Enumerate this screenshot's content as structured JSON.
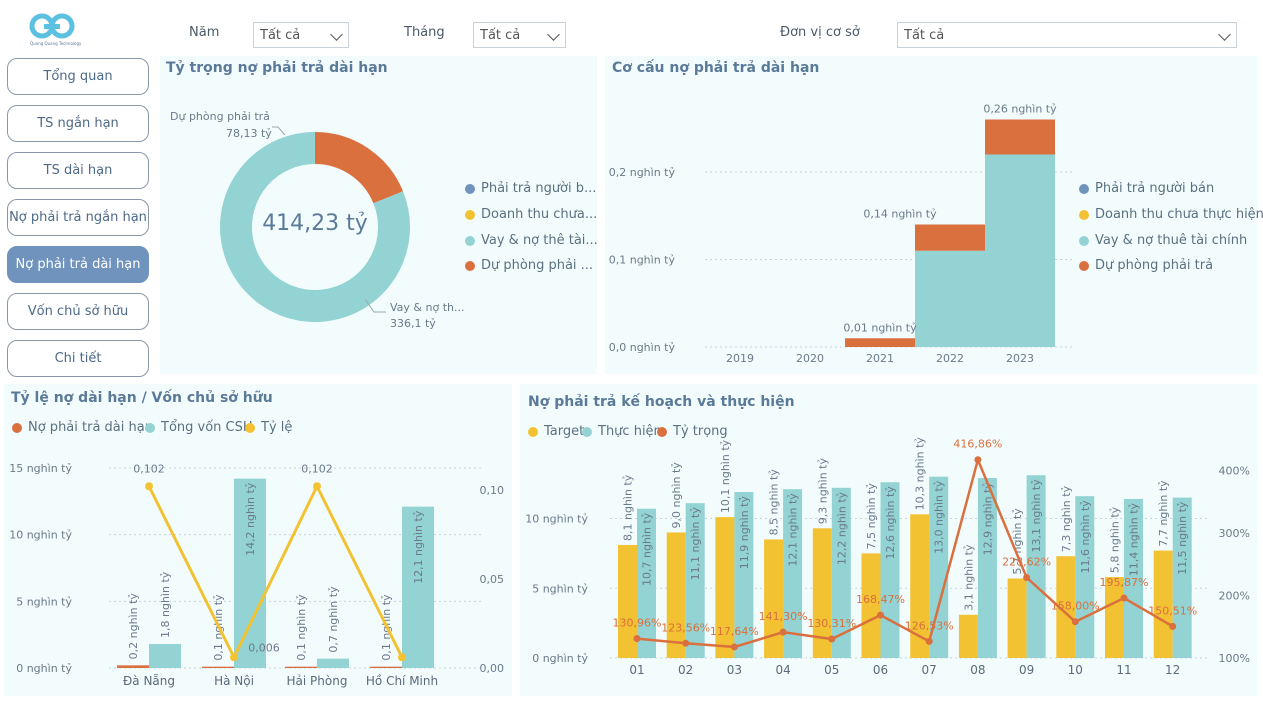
{
  "logo": {
    "caption": "Quang Quang Technology"
  },
  "filters": {
    "year": {
      "label": "Năm",
      "value": "Tất cả"
    },
    "month": {
      "label": "Tháng",
      "value": "Tất cả"
    },
    "unit": {
      "label": "Đơn vị cơ sở",
      "value": "Tất cả"
    }
  },
  "nav": [
    {
      "label": "Tổng quan"
    },
    {
      "label": "TS ngắn hạn"
    },
    {
      "label": "TS dài hạn"
    },
    {
      "label": "Nợ phải trả ngắn hạn"
    },
    {
      "label": "Nợ phải trả dài hạn"
    },
    {
      "label": "Vốn chủ sở hữu"
    },
    {
      "label": "Chi tiết"
    }
  ],
  "colors": {
    "blue": "#6f93bd",
    "yellow": "#f2c232",
    "teal": "#93d3d3",
    "orange": "#d9703e"
  },
  "donut": {
    "title": "Tỷ trọng nợ phải trả dài hạn",
    "center": "414,23 tỷ",
    "label_top_name": "Dự phòng phải trả",
    "label_top_value": "78,13 tỷ",
    "label_bottom_name": "Vay & nợ th...",
    "label_bottom_value": "336,1 tỷ",
    "legend": [
      "Phải trả người b...",
      "Doanh thu chưa...",
      "Vay & nợ thê tài...",
      "Dự phòng phải ..."
    ]
  },
  "structure": {
    "title": "Cơ cấu nợ phải trả dài hạn",
    "legend": [
      "Phải trả người bán",
      "Doanh thu chưa thực hiện",
      "Vay & nợ thuê tài chính",
      "Dự phòng phải trả"
    ],
    "y_ticks": [
      "0,0 nghìn tỷ",
      "0,1 nghìn tỷ",
      "0,2 nghìn tỷ"
    ],
    "data_labels": [
      "0,01 nghìn tỷ",
      "0,14 nghìn tỷ",
      "0,26 nghìn tỷ"
    ]
  },
  "ratio": {
    "title": "Tỷ lệ nợ dài hạn / Vốn chủ sở hữu",
    "legend": [
      "Nợ phải trả dài hạn",
      "Tổng vốn CSH",
      "Tỷ lệ"
    ],
    "y_left_ticks": [
      "0 nghìn tỷ",
      "5 nghìn tỷ",
      "10 nghìn tỷ",
      "15 nghìn tỷ"
    ],
    "y_right_ticks": [
      "0,00",
      "0,05",
      "0,10"
    ]
  },
  "plan": {
    "title": "Nợ phải trả kế hoạch và thực hiện",
    "legend": [
      "Target",
      "Thực hiện",
      "Tỷ trọng"
    ],
    "y_left_ticks": [
      "0 nghìn tỷ",
      "5 nghìn tỷ",
      "10 nghìn tỷ"
    ],
    "y_right_ticks": [
      "100%",
      "200%",
      "300%",
      "400%"
    ]
  },
  "chart_data": [
    {
      "type": "pie",
      "title": "Tỷ trọng nợ phải trả dài hạn",
      "categories": [
        "Dự phòng phải trả",
        "Vay & nợ thuê tài chính"
      ],
      "values": [
        78.13,
        336.1
      ],
      "unit": "tỷ"
    },
    {
      "type": "area",
      "title": "Cơ cấu nợ phải trả dài hạn",
      "categories": [
        "2019",
        "2020",
        "2021",
        "2022",
        "2023"
      ],
      "series": [
        {
          "name": "Vay & nợ thuê tài chính",
          "values": [
            0,
            0,
            0,
            0.11,
            0.22
          ]
        },
        {
          "name": "Dự phòng phải trả",
          "values": [
            0,
            0,
            0.01,
            0.03,
            0.04
          ]
        }
      ],
      "totals": [
        null,
        null,
        0.01,
        0.14,
        0.26
      ],
      "ylim": [
        0,
        0.28
      ]
    },
    {
      "type": "bar",
      "title": "Tỷ lệ nợ dài hạn / Vốn chủ sở hữu",
      "categories": [
        "Đà Nẵng",
        "Hà Nội",
        "Hải Phòng",
        "Hồ Chí Minh"
      ],
      "series": [
        {
          "name": "Nợ phải trả dài hạn",
          "values": [
            0.2,
            0.1,
            0.1,
            0.1
          ],
          "labels": [
            "0,2 nghìn tỷ",
            "0,1 nghìn tỷ",
            "0,1 nghìn tỷ",
            "0,1 nghìn tỷ"
          ]
        },
        {
          "name": "Tổng vốn CSH",
          "values": [
            1.8,
            14.2,
            0.7,
            12.1
          ],
          "labels": [
            "1,8 nghìn tỷ",
            "14,2 nghìn tỷ",
            "0,7 nghìn tỷ",
            "12,1 nghìn tỷ"
          ]
        },
        {
          "name": "Tỷ lệ",
          "values": [
            0.102,
            0.006,
            0.102,
            0.006
          ],
          "labels": [
            "0,102",
            "0,006",
            "0,102",
            ""
          ]
        }
      ],
      "ylim": [
        0,
        15
      ],
      "y2lim": [
        0,
        0.11
      ]
    },
    {
      "type": "bar",
      "title": "Nợ phải trả kế hoạch và thực hiện",
      "categories": [
        "01",
        "02",
        "03",
        "04",
        "05",
        "06",
        "07",
        "08",
        "09",
        "10",
        "11",
        "12"
      ],
      "series": [
        {
          "name": "Target",
          "values": [
            8.1,
            9.0,
            10.1,
            8.5,
            9.3,
            7.5,
            10.3,
            3.1,
            5.7,
            7.3,
            5.8,
            7.7
          ],
          "labels": [
            "8,1 nghìn tỷ",
            "9,0 nghìn tỷ",
            "10,1 nghìn tỷ",
            "8,5 nghìn tỷ",
            "9,3 nghìn tỷ",
            "7,5 nghìn tỷ",
            "10,3 nghìn tỷ",
            "3,1 nghìn tỷ",
            "5,7 nghìn tỷ",
            "7,3 nghìn tỷ",
            "5,8 nghìn tỷ",
            "7,7 nghìn tỷ"
          ]
        },
        {
          "name": "Thực hiện",
          "values": [
            10.7,
            11.1,
            11.9,
            12.1,
            12.2,
            12.6,
            13.0,
            12.9,
            13.1,
            11.6,
            11.4,
            11.5
          ],
          "labels": [
            "10,7 nghìn tỷ",
            "11,1 nghìn tỷ",
            "11,9 nghìn tỷ",
            "12,1 nghìn tỷ",
            "12,2 nghìn tỷ",
            "12,6 nghìn tỷ",
            "13,0 nghìn tỷ",
            "12,9 nghìn tỷ",
            "13,1 nghìn tỷ",
            "11,6 nghìn tỷ",
            "11,4 nghìn tỷ",
            "11,5 nghìn tỷ"
          ]
        },
        {
          "name": "Tỷ trọng",
          "values": [
            130.96,
            123.56,
            117.64,
            141.3,
            130.31,
            168.47,
            126.53,
            416.86,
            228.62,
            158.0,
            195.87,
            150.51
          ],
          "labels": [
            "130,96%",
            "123,56%",
            "117,64%",
            "141,30%",
            "130,31%",
            "168,47%",
            "126,53%",
            "416,86%",
            "228,62%",
            "158,00%",
            "195,87%",
            "150,51%"
          ]
        }
      ],
      "ylim": [
        0,
        15
      ],
      "y2lim": [
        100,
        420
      ]
    }
  ]
}
